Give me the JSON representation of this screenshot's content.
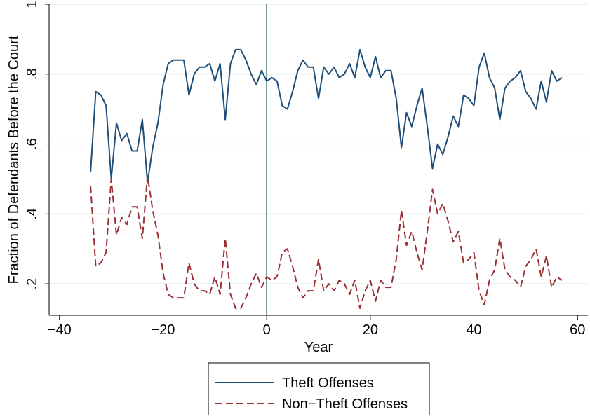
{
  "chart_data": {
    "type": "line",
    "title": "",
    "xlabel": "Year",
    "ylabel": "Fraction of Defendants Before the Court",
    "xlim": [
      -42,
      62
    ],
    "ylim": [
      0.11,
      1.0
    ],
    "x_ticks": [
      -40,
      -20,
      0,
      20,
      40,
      60
    ],
    "x_tick_labels": [
      "−40",
      "−20",
      "0",
      "20",
      "40",
      "60"
    ],
    "y_ticks": [
      0.2,
      0.4,
      0.6,
      0.8,
      1
    ],
    "y_tick_labels": [
      ".2",
      ".4",
      ".6",
      ".8",
      "1"
    ],
    "grid": true,
    "vline_x": 0,
    "legend_position": "bottom",
    "x": [
      -34,
      -33,
      -32,
      -31,
      -30,
      -29,
      -28,
      -27,
      -26,
      -25,
      -24,
      -23,
      -22,
      -21,
      -20,
      -19,
      -18,
      -17,
      -16,
      -15,
      -14,
      -13,
      -12,
      -11,
      -10,
      -9,
      -8,
      -7,
      -6,
      -5,
      -4,
      -3,
      -2,
      -1,
      0,
      1,
      2,
      3,
      4,
      5,
      6,
      7,
      8,
      9,
      10,
      11,
      12,
      13,
      14,
      15,
      16,
      17,
      18,
      19,
      20,
      21,
      22,
      23,
      24,
      25,
      26,
      27,
      28,
      29,
      30,
      31,
      32,
      33,
      34,
      35,
      36,
      37,
      38,
      39,
      40,
      41,
      42,
      43,
      44,
      45,
      46,
      47,
      48,
      49,
      50,
      51,
      52,
      53,
      54,
      55,
      56,
      57
    ],
    "series": [
      {
        "name": "Theft Offenses",
        "color": "#1f4e79",
        "dash": "solid",
        "values": [
          0.52,
          0.75,
          0.74,
          0.71,
          0.5,
          0.66,
          0.61,
          0.63,
          0.58,
          0.58,
          0.67,
          0.49,
          0.59,
          0.66,
          0.77,
          0.83,
          0.84,
          0.84,
          0.84,
          0.74,
          0.8,
          0.82,
          0.82,
          0.83,
          0.78,
          0.83,
          0.67,
          0.83,
          0.87,
          0.87,
          0.84,
          0.8,
          0.77,
          0.81,
          0.78,
          0.79,
          0.78,
          0.71,
          0.7,
          0.75,
          0.81,
          0.84,
          0.82,
          0.82,
          0.73,
          0.82,
          0.8,
          0.82,
          0.79,
          0.8,
          0.83,
          0.79,
          0.87,
          0.82,
          0.79,
          0.85,
          0.79,
          0.81,
          0.81,
          0.73,
          0.59,
          0.69,
          0.65,
          0.71,
          0.76,
          0.65,
          0.53,
          0.6,
          0.57,
          0.62,
          0.68,
          0.65,
          0.74,
          0.73,
          0.71,
          0.82,
          0.86,
          0.79,
          0.76,
          0.67,
          0.76,
          0.78,
          0.79,
          0.81,
          0.75,
          0.73,
          0.7,
          0.78,
          0.72,
          0.81,
          0.78,
          0.79
        ]
      },
      {
        "name": "Non−Theft Offenses",
        "color": "#9b3034",
        "dash": "dashed",
        "values": [
          0.48,
          0.25,
          0.26,
          0.29,
          0.5,
          0.34,
          0.39,
          0.37,
          0.42,
          0.42,
          0.33,
          0.51,
          0.41,
          0.34,
          0.23,
          0.17,
          0.16,
          0.16,
          0.16,
          0.26,
          0.2,
          0.18,
          0.18,
          0.17,
          0.22,
          0.17,
          0.33,
          0.17,
          0.13,
          0.13,
          0.16,
          0.2,
          0.23,
          0.19,
          0.22,
          0.21,
          0.22,
          0.29,
          0.3,
          0.25,
          0.19,
          0.16,
          0.18,
          0.18,
          0.27,
          0.18,
          0.2,
          0.18,
          0.21,
          0.2,
          0.17,
          0.21,
          0.13,
          0.18,
          0.21,
          0.15,
          0.21,
          0.19,
          0.19,
          0.27,
          0.41,
          0.31,
          0.35,
          0.29,
          0.24,
          0.35,
          0.47,
          0.4,
          0.43,
          0.38,
          0.32,
          0.35,
          0.26,
          0.27,
          0.29,
          0.18,
          0.14,
          0.21,
          0.24,
          0.33,
          0.24,
          0.22,
          0.21,
          0.19,
          0.25,
          0.27,
          0.3,
          0.22,
          0.28,
          0.19,
          0.22,
          0.21
        ]
      }
    ]
  }
}
